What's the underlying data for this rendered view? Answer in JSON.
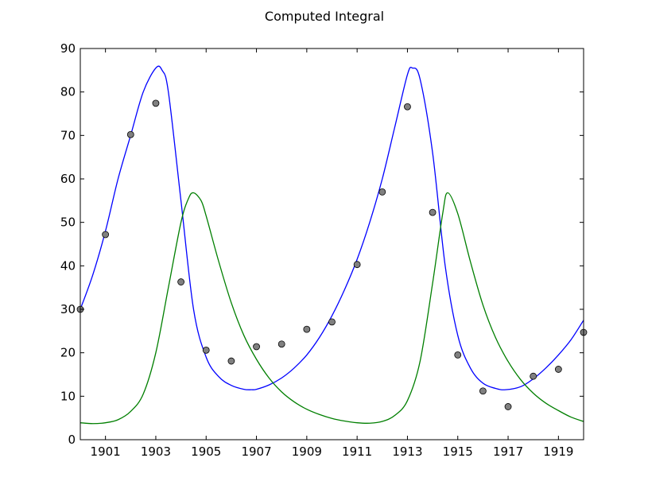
{
  "chart_data": {
    "type": "line",
    "title": "Computed Integral",
    "xlabel": "",
    "ylabel": "",
    "xlim": [
      1900,
      1920
    ],
    "ylim": [
      0,
      90
    ],
    "x_ticks": [
      1901,
      1903,
      1905,
      1907,
      1909,
      1911,
      1913,
      1915,
      1917,
      1919
    ],
    "y_ticks": [
      0,
      10,
      20,
      30,
      40,
      50,
      60,
      70,
      80,
      90
    ],
    "grid": false,
    "legend": "none",
    "colors": {
      "blue": "#0000ff",
      "green": "#007f00",
      "points": "#808080"
    },
    "series": [
      {
        "style": "line",
        "color": "#0000ff",
        "x": [
          1900,
          1900.5,
          1901,
          1901.5,
          1902,
          1902.5,
          1903,
          1903.25,
          1903.5,
          1904,
          1904.5,
          1905,
          1905.5,
          1906,
          1906.5,
          1906.8,
          1907,
          1907.5,
          1908,
          1908.5,
          1909,
          1909.5,
          1910,
          1910.5,
          1911,
          1911.5,
          1912,
          1912.5,
          1913,
          1913.2,
          1913.5,
          1914,
          1914.5,
          1915,
          1915.5,
          1916,
          1916.5,
          1916.9,
          1917.5,
          1918,
          1918.5,
          1919,
          1919.5,
          1920
        ],
        "y": [
          30,
          38,
          48,
          60,
          70,
          80,
          85.5,
          85,
          80,
          55,
          30,
          19,
          14.5,
          12.5,
          11.6,
          11.5,
          11.6,
          12.6,
          14.2,
          16.5,
          19.5,
          23.5,
          28.5,
          34.5,
          41.5,
          50,
          60,
          72,
          84,
          85.5,
          83,
          66,
          40,
          24,
          16.5,
          13,
          11.8,
          11.5,
          12.2,
          14,
          16.5,
          19.5,
          23,
          27.5
        ]
      },
      {
        "style": "line",
        "color": "#007f00",
        "x": [
          1900,
          1900.5,
          1901,
          1901.5,
          1902,
          1902.5,
          1903,
          1903.5,
          1904,
          1904.3,
          1904.5,
          1904.8,
          1905,
          1905.5,
          1906,
          1906.5,
          1907,
          1907.5,
          1908,
          1908.5,
          1909,
          1909.5,
          1910,
          1910.5,
          1911,
          1911.5,
          1912,
          1912.5,
          1913,
          1913.5,
          1914,
          1914.4,
          1914.6,
          1915,
          1915.5,
          1916,
          1916.5,
          1917,
          1917.5,
          1918,
          1918.5,
          1919,
          1919.5,
          1920
        ],
        "y": [
          3.9,
          3.7,
          3.9,
          4.6,
          6.5,
          10.5,
          20,
          35,
          50,
          55.5,
          56.8,
          55,
          51.5,
          41,
          31.5,
          24,
          18.5,
          14.2,
          11,
          8.7,
          7,
          5.8,
          4.9,
          4.3,
          3.9,
          3.8,
          4.2,
          5.6,
          9,
          18,
          36,
          52,
          56.8,
          52,
          41,
          31,
          23.5,
          18,
          13.8,
          10.7,
          8.4,
          6.7,
          5.2,
          4.2
        ]
      },
      {
        "style": "scatter",
        "color": "#808080",
        "x": [
          1900,
          1901,
          1902,
          1903,
          1904,
          1905,
          1906,
          1907,
          1908,
          1909,
          1910,
          1911,
          1912,
          1913,
          1914,
          1915,
          1916,
          1917,
          1918,
          1919,
          1920
        ],
        "y": [
          30,
          47.2,
          70.2,
          77.4,
          36.3,
          20.6,
          18.1,
          21.4,
          22,
          25.4,
          27.1,
          40.3,
          57,
          76.6,
          52.3,
          19.5,
          11.2,
          7.6,
          14.6,
          16.2,
          24.7
        ]
      }
    ]
  }
}
